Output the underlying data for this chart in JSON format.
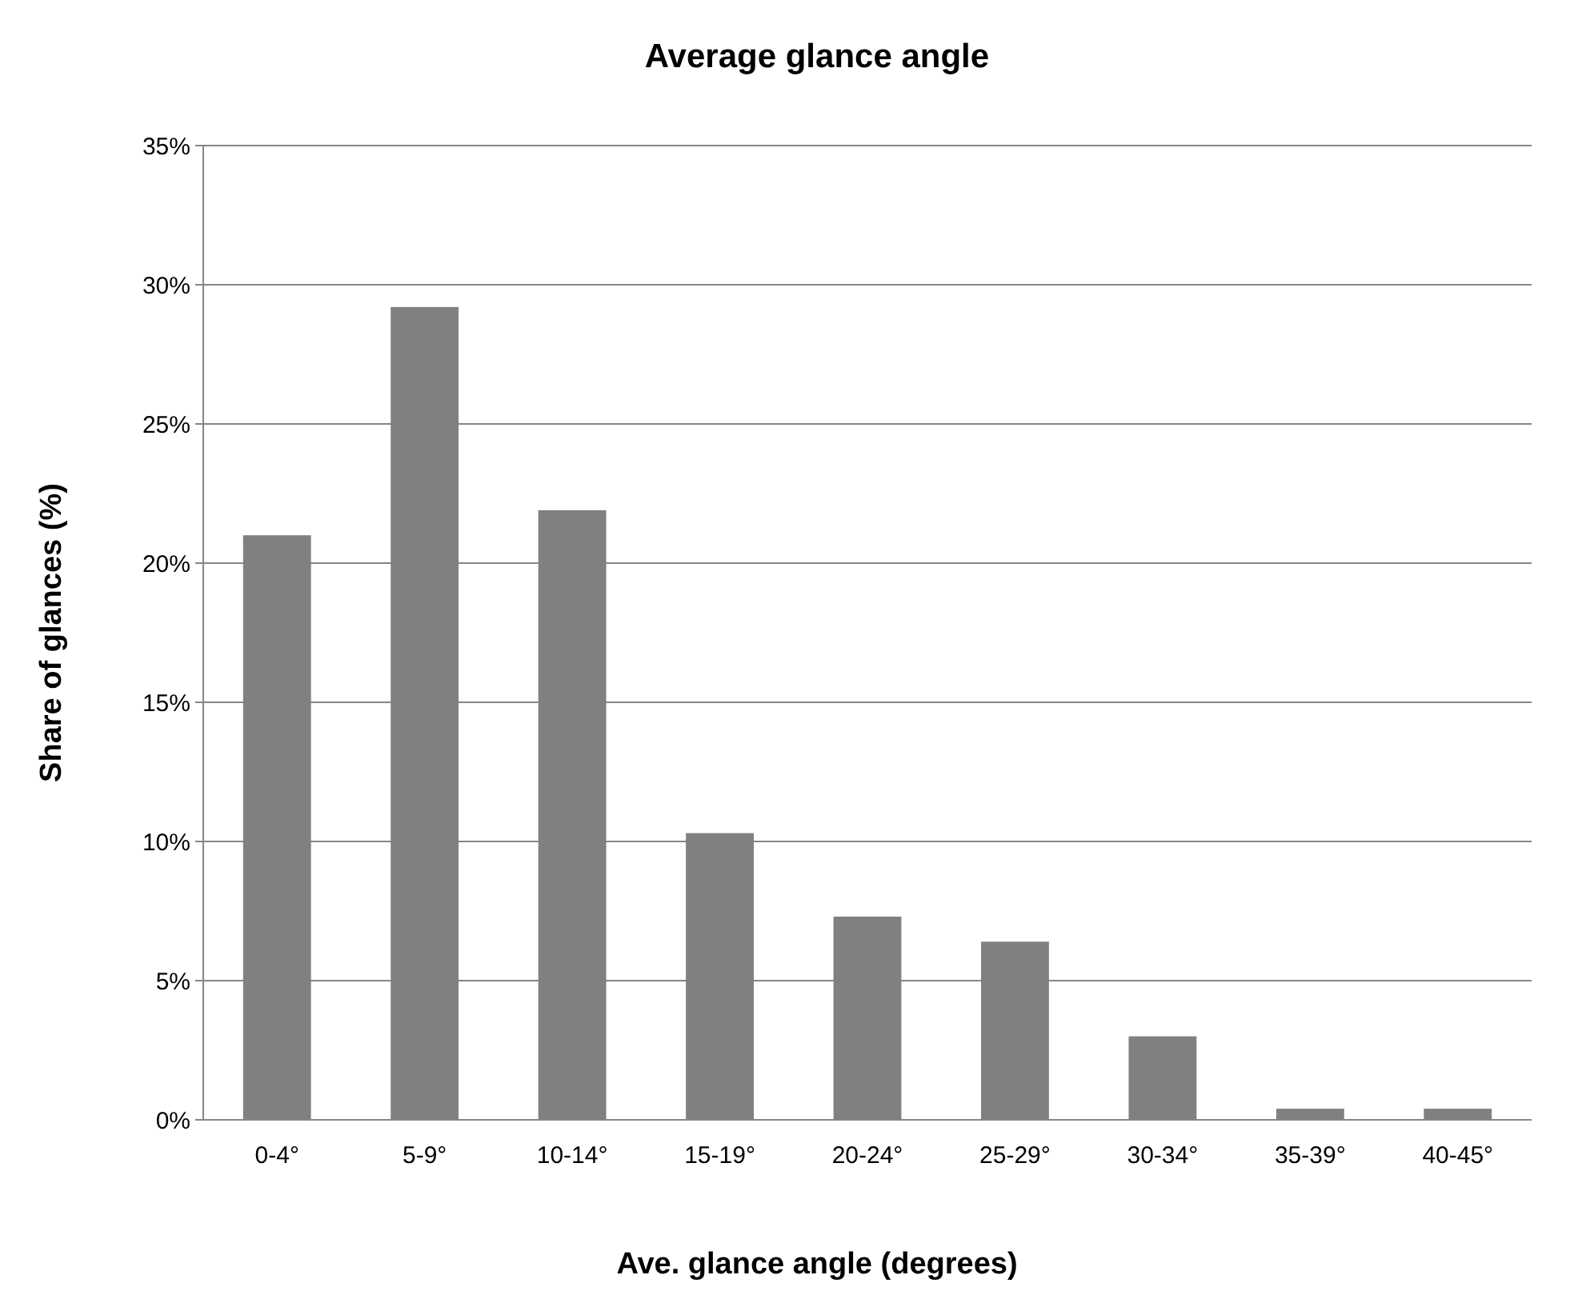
{
  "chart_data": {
    "type": "bar",
    "title": "Average glance angle",
    "xlabel": "Ave. glance angle (degrees)",
    "ylabel": "Share of glances (%)",
    "categories": [
      "0-4°",
      "5-9°",
      "10-14°",
      "15-19°",
      "20-24°",
      "25-29°",
      "30-34°",
      "35-39°",
      "40-45°"
    ],
    "values": [
      21.0,
      29.2,
      21.9,
      10.3,
      7.3,
      6.4,
      3.0,
      0.4,
      0.4
    ],
    "color": "#808080",
    "ylim": [
      0,
      35
    ],
    "yticks": [
      {
        "value": 0,
        "label": "0%"
      },
      {
        "value": 5,
        "label": "5%"
      },
      {
        "value": 10,
        "label": "10%"
      },
      {
        "value": 15,
        "label": "15%"
      },
      {
        "value": 20,
        "label": "20%"
      },
      {
        "value": 25,
        "label": "25%"
      },
      {
        "value": 30,
        "label": "30%"
      },
      {
        "value": 35,
        "label": "35%"
      }
    ],
    "grid": "y"
  }
}
